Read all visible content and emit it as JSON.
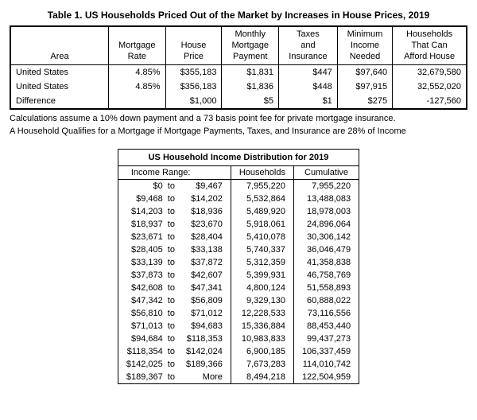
{
  "title": "Table 1. US Households Priced Out of the Market by Increases in House Prices, 2019",
  "main_table": {
    "headers": {
      "area": "Area",
      "rate": "Mortgage\nRate",
      "price": "House\nPrice",
      "payment": "Monthly\nMortgage\nPayment",
      "taxes": "Taxes\nand\nInsurance",
      "income": "Minimum\nIncome\nNeeded",
      "afford": "Households\nThat Can\nAfford House"
    },
    "rows": [
      {
        "area": "United States",
        "rate": "4.85%",
        "price": "$355,183",
        "payment": "$1,831",
        "taxes": "$447",
        "income": "$97,640",
        "afford": "32,679,580"
      },
      {
        "area": "United States",
        "rate": "4.85%",
        "price": "$356,183",
        "payment": "$1,836",
        "taxes": "$448",
        "income": "$97,915",
        "afford": "32,552,020"
      },
      {
        "area": "Difference",
        "rate": "",
        "price": "$1,000",
        "payment": "$5",
        "taxes": "$1",
        "income": "$275",
        "afford": "-127,560"
      }
    ]
  },
  "notes": [
    "Calculations assume a 10% down payment and a 73 basis point fee for private mortgage insurance.",
    "A Household Qualifies for a Mortgage if Mortgage Payments, Taxes, and Insurance are 28% of Income"
  ],
  "dist_table": {
    "title": "US Household Income Distribution for 2019",
    "headers": {
      "range": "Income Range:",
      "hh": "Households",
      "cum": "Cumulative"
    },
    "rows": [
      {
        "low": "$0",
        "high": "$9,467",
        "hh": "7,955,220",
        "cum": "7,955,220"
      },
      {
        "low": "$9,468",
        "high": "$14,202",
        "hh": "5,532,864",
        "cum": "13,488,083"
      },
      {
        "low": "$14,203",
        "high": "$18,936",
        "hh": "5,489,920",
        "cum": "18,978,003"
      },
      {
        "low": "$18,937",
        "high": "$23,670",
        "hh": "5,918,061",
        "cum": "24,896,064"
      },
      {
        "low": "$23,671",
        "high": "$28,404",
        "hh": "5,410,078",
        "cum": "30,306,142"
      },
      {
        "low": "$28,405",
        "high": "$33,138",
        "hh": "5,740,337",
        "cum": "36,046,479"
      },
      {
        "low": "$33,139",
        "high": "$37,872",
        "hh": "5,312,359",
        "cum": "41,358,838"
      },
      {
        "low": "$37,873",
        "high": "$42,607",
        "hh": "5,399,931",
        "cum": "46,758,769"
      },
      {
        "low": "$42,608",
        "high": "$47,341",
        "hh": "4,800,124",
        "cum": "51,558,893"
      },
      {
        "low": "$47,342",
        "high": "$56,809",
        "hh": "9,329,130",
        "cum": "60,888,022"
      },
      {
        "low": "$56,810",
        "high": "$71,012",
        "hh": "12,228,533",
        "cum": "73,116,556"
      },
      {
        "low": "$71,013",
        "high": "$94,683",
        "hh": "15,336,884",
        "cum": "88,453,440"
      },
      {
        "low": "$94,684",
        "high": "$118,353",
        "hh": "10,983,833",
        "cum": "99,437,273"
      },
      {
        "low": "$118,354",
        "high": "$142,024",
        "hh": "6,900,185",
        "cum": "106,337,459"
      },
      {
        "low": "$142,025",
        "high": "$189,366",
        "hh": "7,673,283",
        "cum": "114,010,742"
      },
      {
        "low": "$189,367",
        "high": "More",
        "hh": "8,494,218",
        "cum": "122,504,959"
      }
    ]
  }
}
